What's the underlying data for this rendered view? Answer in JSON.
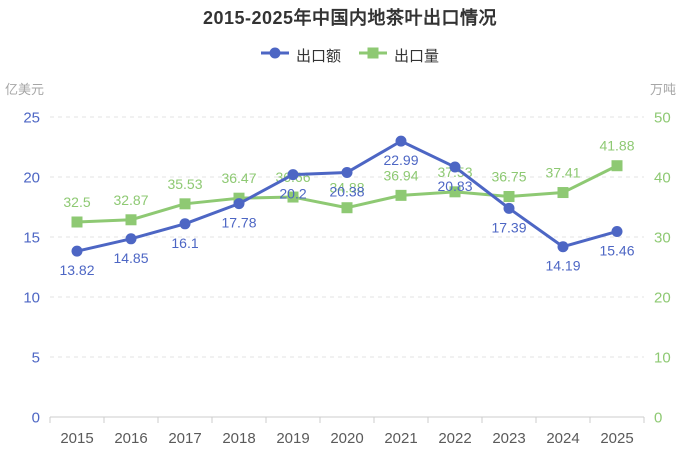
{
  "title": "2015-2025年中国内地茶叶出口情况",
  "legend": {
    "items": [
      {
        "label": "出口额",
        "marker": "circle"
      },
      {
        "label": "出口量",
        "marker": "square"
      }
    ]
  },
  "axes": {
    "left_name": "亿美元",
    "right_name": "万吨"
  },
  "colors": {
    "blue_series": "#4d66c4",
    "green_series": "#8ec973",
    "grid_line": "#e3e3e3",
    "axis_line": "#cccccc",
    "title_text": "#333333",
    "legend_text": "#333333",
    "axis_name_text": "#a6a6a6",
    "year_label_text": "#5a5a5a"
  },
  "chart_data": {
    "type": "line",
    "title": "2015-2025年中国内地茶叶出口情况",
    "categories": [
      "2015",
      "2016",
      "2017",
      "2018",
      "2019",
      "2020",
      "2021",
      "2022",
      "2023",
      "2024",
      "2025"
    ],
    "series": [
      {
        "name": "出口额",
        "key": "export-value",
        "unit": "亿美元",
        "axis": "left",
        "marker": "circle",
        "color": "#4d66c4",
        "label_position": "bottom",
        "values": [
          13.82,
          14.85,
          16.1,
          17.78,
          20.2,
          20.38,
          22.99,
          20.83,
          17.39,
          14.19,
          15.46
        ]
      },
      {
        "name": "出口量",
        "key": "export-volume",
        "unit": "万吨",
        "axis": "right",
        "marker": "square",
        "color": "#8ec973",
        "label_position": "top",
        "values": [
          32.5,
          32.87,
          35.53,
          36.47,
          36.66,
          34.88,
          36.94,
          37.53,
          36.75,
          37.41,
          41.88
        ]
      }
    ],
    "left_axis": {
      "name": "亿美元",
      "min": 0,
      "max": 25,
      "ticks": [
        0,
        5,
        10,
        15,
        20,
        25
      ]
    },
    "right_axis": {
      "name": "万吨",
      "min": 0,
      "max": 50,
      "ticks": [
        0,
        10,
        20,
        30,
        40,
        50
      ]
    },
    "grid": {
      "horizontal_gridlines": true,
      "style": "dashed"
    },
    "legend_position": "top"
  }
}
